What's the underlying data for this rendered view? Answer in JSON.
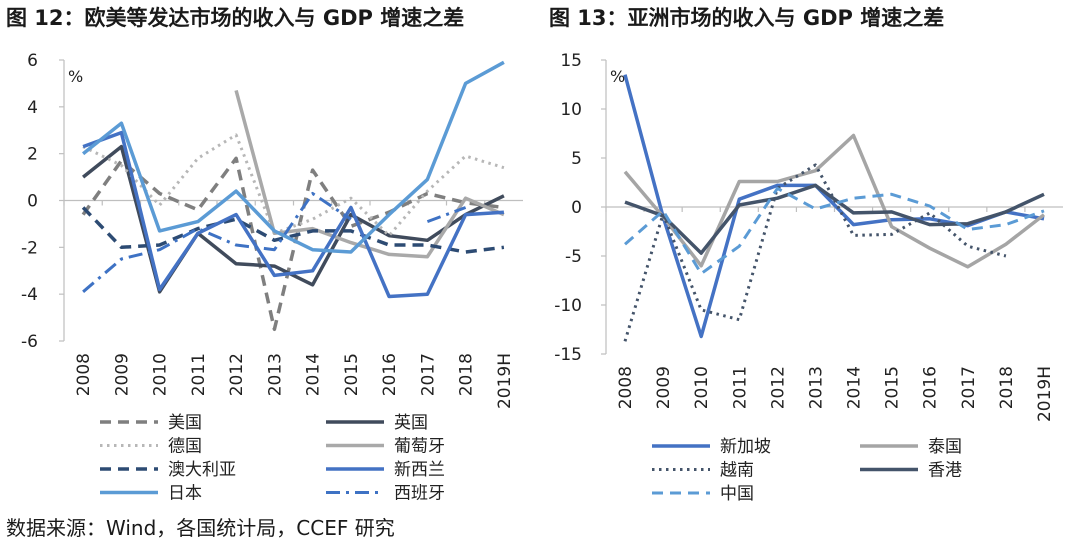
{
  "titles": {
    "left": "图 12：欧美等发达市场的收入与 GDP 增速之差",
    "right": "图 13：亚洲市场的收入与 GDP 增速之差"
  },
  "source": "数据来源：Wind，各国统计局，CCEF 研究",
  "chart_data": [
    {
      "type": "line",
      "title": "图 12：欧美等发达市场的收入与 GDP 增速之差",
      "unit_label": "%",
      "categories": [
        "2008",
        "2009",
        "2010",
        "2011",
        "2012",
        "2013",
        "2014",
        "2015",
        "2016",
        "2017",
        "2018",
        "2019H"
      ],
      "ylim": [
        -6,
        6
      ],
      "yticks": [
        6,
        4,
        2,
        0,
        -2,
        -4,
        -6
      ],
      "grid": false,
      "legend_position": "bottom",
      "series": [
        {
          "name": "美国",
          "color": "#7f7f7f",
          "dash": "dash",
          "width": 3.5,
          "values": [
            -0.6,
            1.7,
            0.3,
            -0.4,
            1.8,
            -5.5,
            1.3,
            -1.1,
            -0.5,
            0.3,
            -0.1,
            -0.3
          ]
        },
        {
          "name": "英国",
          "color": "#404b5c",
          "dash": "solid",
          "width": 3.5,
          "values": [
            1.0,
            2.3,
            -3.9,
            -1.4,
            -2.7,
            -2.8,
            -3.6,
            -0.6,
            -1.5,
            -1.7,
            -0.6,
            0.2
          ]
        },
        {
          "name": "德国",
          "color": "#b7b7b7",
          "dash": "dot",
          "width": 3,
          "values": [
            2.3,
            1.5,
            -0.2,
            1.8,
            2.8,
            -1.4,
            -0.8,
            0.1,
            -1.5,
            0.4,
            1.9,
            1.4
          ]
        },
        {
          "name": "葡萄牙",
          "color": "#a9a9a9",
          "dash": "solid",
          "width": 3.5,
          "values": [
            null,
            null,
            null,
            null,
            4.7,
            -1.4,
            -1.2,
            -1.8,
            -2.3,
            -2.4,
            0.1,
            -0.6
          ]
        },
        {
          "name": "澳大利亚",
          "color": "#2d4b73",
          "dash": "dash",
          "width": 3.5,
          "values": [
            -0.3,
            -2.0,
            -1.9,
            -1.2,
            -0.8,
            -1.7,
            -1.3,
            -1.3,
            -1.9,
            -1.9,
            -2.2,
            -2.0
          ]
        },
        {
          "name": "新西兰",
          "color": "#4472c4",
          "dash": "solid",
          "width": 3.5,
          "values": [
            2.3,
            2.9,
            -3.8,
            -1.4,
            -0.6,
            -3.2,
            -3.0,
            -0.3,
            -4.1,
            -4.0,
            -0.6,
            -0.5
          ]
        },
        {
          "name": "日本",
          "color": "#5b9bd5",
          "dash": "solid",
          "width": 3.5,
          "values": [
            2.0,
            3.3,
            -1.3,
            -0.9,
            0.4,
            -1.3,
            -2.1,
            -2.2,
            -0.6,
            0.9,
            5.0,
            5.9
          ]
        },
        {
          "name": "西班牙",
          "color": "#3e72c4",
          "dash": "dashdot",
          "width": 3,
          "values": [
            -3.9,
            -2.5,
            -2.1,
            -1.2,
            -1.9,
            -2.1,
            0.3,
            -0.8,
            null,
            -0.9,
            -0.3,
            null
          ]
        }
      ]
    },
    {
      "type": "line",
      "title": "图 13：亚洲市场的收入与 GDP 增速之差",
      "unit_label": "%",
      "categories": [
        "2008",
        "2009",
        "2010",
        "2011",
        "2012",
        "2013",
        "2014",
        "2015",
        "2016",
        "2017",
        "2018",
        "2019H"
      ],
      "ylim": [
        -15,
        15
      ],
      "yticks": [
        15,
        10,
        5,
        0,
        -5,
        -10,
        -15
      ],
      "grid": false,
      "legend_position": "bottom",
      "series": [
        {
          "name": "新加坡",
          "color": "#4472c4",
          "dash": "solid",
          "width": 3.5,
          "values": [
            13.5,
            -1.0,
            -13.2,
            0.8,
            2.2,
            2.2,
            -1.8,
            -1.3,
            -1.2,
            -1.9,
            -0.5,
            -1.2
          ]
        },
        {
          "name": "泰国",
          "color": "#a5a5a5",
          "dash": "solid",
          "width": 3.5,
          "values": [
            3.6,
            -1.0,
            -6.0,
            2.6,
            2.6,
            3.7,
            7.3,
            -2.0,
            -4.2,
            -6.1,
            -3.8,
            -0.8
          ]
        },
        {
          "name": "越南",
          "color": "#44546a",
          "dash": "dot",
          "width": 3,
          "values": [
            -13.7,
            -0.7,
            -10.5,
            -11.5,
            1.9,
            4.3,
            -2.9,
            -2.8,
            -0.6,
            -4.0,
            -5.0,
            null
          ]
        },
        {
          "name": "香港",
          "color": "#44546a",
          "dash": "solid",
          "width": 3.5,
          "values": [
            0.5,
            -0.9,
            -4.7,
            0.2,
            0.9,
            2.2,
            -0.6,
            -0.5,
            -1.8,
            -1.7,
            -0.5,
            1.3
          ]
        },
        {
          "name": "中国",
          "color": "#5b9bd5",
          "dash": "dash",
          "width": 3,
          "values": [
            -3.8,
            -0.4,
            -6.8,
            -4.0,
            1.9,
            -0.2,
            0.9,
            1.3,
            0.1,
            -2.3,
            -1.8,
            -0.4
          ]
        }
      ]
    }
  ]
}
